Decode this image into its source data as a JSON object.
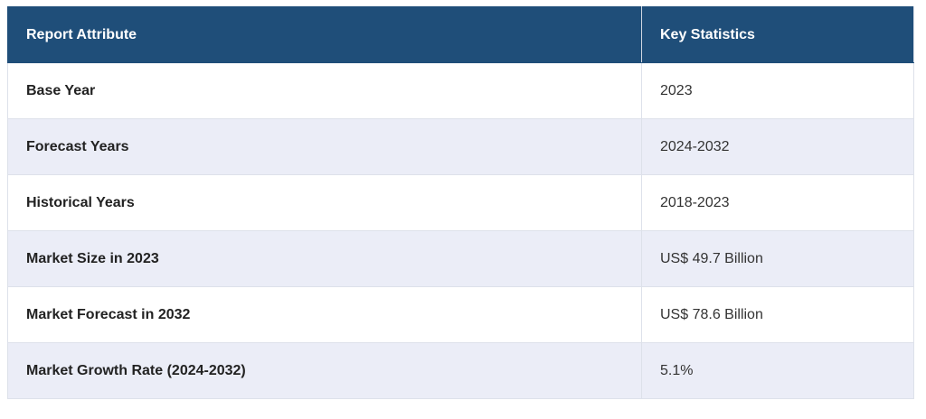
{
  "table": {
    "header": [
      "Report Attribute",
      "Key Statistics"
    ],
    "rows": [
      [
        "Base Year",
        "2023"
      ],
      [
        "Forecast Years",
        "2024-2032"
      ],
      [
        "Historical Years",
        "2018-2023"
      ],
      [
        "Market Size in 2023",
        "US$ 49.7 Billion"
      ],
      [
        "Market Forecast in 2032",
        "US$ 78.6 Billion"
      ],
      [
        "Market Growth Rate (2024-2032)",
        "5.1%"
      ]
    ]
  }
}
